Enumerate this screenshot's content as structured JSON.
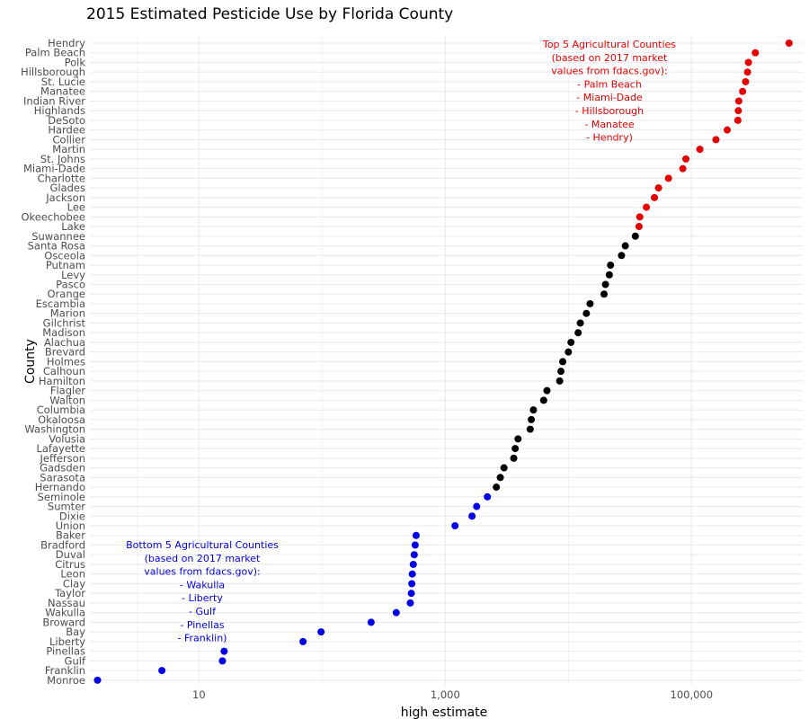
{
  "chart_data": {
    "type": "scatter",
    "title": "2015 Estimated Pesticide Use by Florida County",
    "xlabel": "high estimate",
    "ylabel": "County",
    "x_scale": "log10",
    "xlim": [
      1.3,
      800000
    ],
    "x_ticks": [
      {
        "value": 10,
        "label": "10"
      },
      {
        "value": 1000,
        "label": "1,000"
      },
      {
        "value": 100000,
        "label": "100,000"
      }
    ],
    "grid": true,
    "colors": {
      "top": "#e60000",
      "middle": "#000000",
      "bottom": "#0000e6",
      "grid": "#ebebeb"
    },
    "points": [
      {
        "county": "Hendry",
        "value": 620000,
        "group": "top"
      },
      {
        "county": "Palm Beach",
        "value": 330000,
        "group": "top"
      },
      {
        "county": "Polk",
        "value": 290000,
        "group": "top"
      },
      {
        "county": "Hillsborough",
        "value": 285000,
        "group": "top"
      },
      {
        "county": "St. Lucie",
        "value": 275000,
        "group": "top"
      },
      {
        "county": "Manatee",
        "value": 260000,
        "group": "top"
      },
      {
        "county": "Indian River",
        "value": 242000,
        "group": "top"
      },
      {
        "county": "Highlands",
        "value": 240000,
        "group": "top"
      },
      {
        "county": "DeSoto",
        "value": 238000,
        "group": "top"
      },
      {
        "county": "Hardee",
        "value": 195000,
        "group": "top"
      },
      {
        "county": "Collier",
        "value": 158000,
        "group": "top"
      },
      {
        "county": "Martin",
        "value": 117000,
        "group": "top"
      },
      {
        "county": "St. Johns",
        "value": 90000,
        "group": "top"
      },
      {
        "county": "Miami-Dade",
        "value": 85000,
        "group": "top"
      },
      {
        "county": "Charlotte",
        "value": 65000,
        "group": "top"
      },
      {
        "county": "Glades",
        "value": 54000,
        "group": "top"
      },
      {
        "county": "Jackson",
        "value": 50000,
        "group": "top"
      },
      {
        "county": "Lee",
        "value": 43000,
        "group": "top"
      },
      {
        "county": "Okeechobee",
        "value": 38000,
        "group": "top"
      },
      {
        "county": "Lake",
        "value": 37500,
        "group": "top"
      },
      {
        "county": "Suwannee",
        "value": 35000,
        "group": "middle"
      },
      {
        "county": "Santa Rosa",
        "value": 29000,
        "group": "middle"
      },
      {
        "county": "Osceola",
        "value": 27000,
        "group": "middle"
      },
      {
        "county": "Putnam",
        "value": 22000,
        "group": "middle"
      },
      {
        "county": "Levy",
        "value": 21500,
        "group": "middle"
      },
      {
        "county": "Pasco",
        "value": 20000,
        "group": "middle"
      },
      {
        "county": "Orange",
        "value": 19500,
        "group": "middle"
      },
      {
        "county": "Escambia",
        "value": 15000,
        "group": "middle"
      },
      {
        "county": "Marion",
        "value": 14000,
        "group": "middle"
      },
      {
        "county": "Gilchrist",
        "value": 12500,
        "group": "middle"
      },
      {
        "county": "Madison",
        "value": 12000,
        "group": "middle"
      },
      {
        "county": "Alachua",
        "value": 10500,
        "group": "middle"
      },
      {
        "county": "Brevard",
        "value": 10000,
        "group": "middle"
      },
      {
        "county": "Holmes",
        "value": 9000,
        "group": "middle"
      },
      {
        "county": "Calhoun",
        "value": 8700,
        "group": "middle"
      },
      {
        "county": "Hamilton",
        "value": 8500,
        "group": "middle"
      },
      {
        "county": "Flagler",
        "value": 6700,
        "group": "middle"
      },
      {
        "county": "Walton",
        "value": 6300,
        "group": "middle"
      },
      {
        "county": "Columbia",
        "value": 5200,
        "group": "middle"
      },
      {
        "county": "Okaloosa",
        "value": 5000,
        "group": "middle"
      },
      {
        "county": "Washington",
        "value": 4900,
        "group": "middle"
      },
      {
        "county": "Volusia",
        "value": 3900,
        "group": "middle"
      },
      {
        "county": "Lafayette",
        "value": 3700,
        "group": "middle"
      },
      {
        "county": "Jefferson",
        "value": 3600,
        "group": "middle"
      },
      {
        "county": "Gadsden",
        "value": 3000,
        "group": "middle"
      },
      {
        "county": "Sarasota",
        "value": 2800,
        "group": "middle"
      },
      {
        "county": "Hernando",
        "value": 2600,
        "group": "middle"
      },
      {
        "county": "Seminole",
        "value": 2200,
        "group": "bottom"
      },
      {
        "county": "Sumter",
        "value": 1800,
        "group": "bottom"
      },
      {
        "county": "Dixie",
        "value": 1650,
        "group": "bottom"
      },
      {
        "county": "Union",
        "value": 1200,
        "group": "bottom"
      },
      {
        "county": "Baker",
        "value": 580,
        "group": "bottom"
      },
      {
        "county": "Bradford",
        "value": 570,
        "group": "bottom"
      },
      {
        "county": "Duval",
        "value": 560,
        "group": "bottom"
      },
      {
        "county": "Citrus",
        "value": 550,
        "group": "bottom"
      },
      {
        "county": "Leon",
        "value": 540,
        "group": "bottom"
      },
      {
        "county": "Clay",
        "value": 535,
        "group": "bottom"
      },
      {
        "county": "Taylor",
        "value": 530,
        "group": "bottom"
      },
      {
        "county": "Nassau",
        "value": 520,
        "group": "bottom"
      },
      {
        "county": "Wakulla",
        "value": 400,
        "group": "bottom"
      },
      {
        "county": "Broward",
        "value": 250,
        "group": "bottom"
      },
      {
        "county": "Bay",
        "value": 98,
        "group": "bottom"
      },
      {
        "county": "Liberty",
        "value": 70,
        "group": "bottom"
      },
      {
        "county": "Pinellas",
        "value": 16,
        "group": "bottom"
      },
      {
        "county": "Gulf",
        "value": 15.5,
        "group": "bottom"
      },
      {
        "county": "Franklin",
        "value": 5,
        "group": "bottom"
      },
      {
        "county": "Monroe",
        "value": 1.5,
        "group": "bottom"
      }
    ],
    "annotations": [
      {
        "group": "top",
        "position": "top-right",
        "lines": [
          "Top 5 Agricultural Counties",
          "(based on 2017 market",
          "values from fdacs.gov):",
          "- Palm Beach",
          "- Miami-Dade",
          "- Hillsborough",
          "- Manatee",
          "- Hendry)"
        ]
      },
      {
        "group": "bottom",
        "position": "bottom-left",
        "lines": [
          "Bottom 5 Agricultural Counties",
          "(based on 2017 market",
          "values from fdacs.gov):",
          "- Wakulla",
          "- Liberty",
          "- Gulf",
          "- Pinellas",
          "- Franklin)"
        ]
      }
    ]
  }
}
